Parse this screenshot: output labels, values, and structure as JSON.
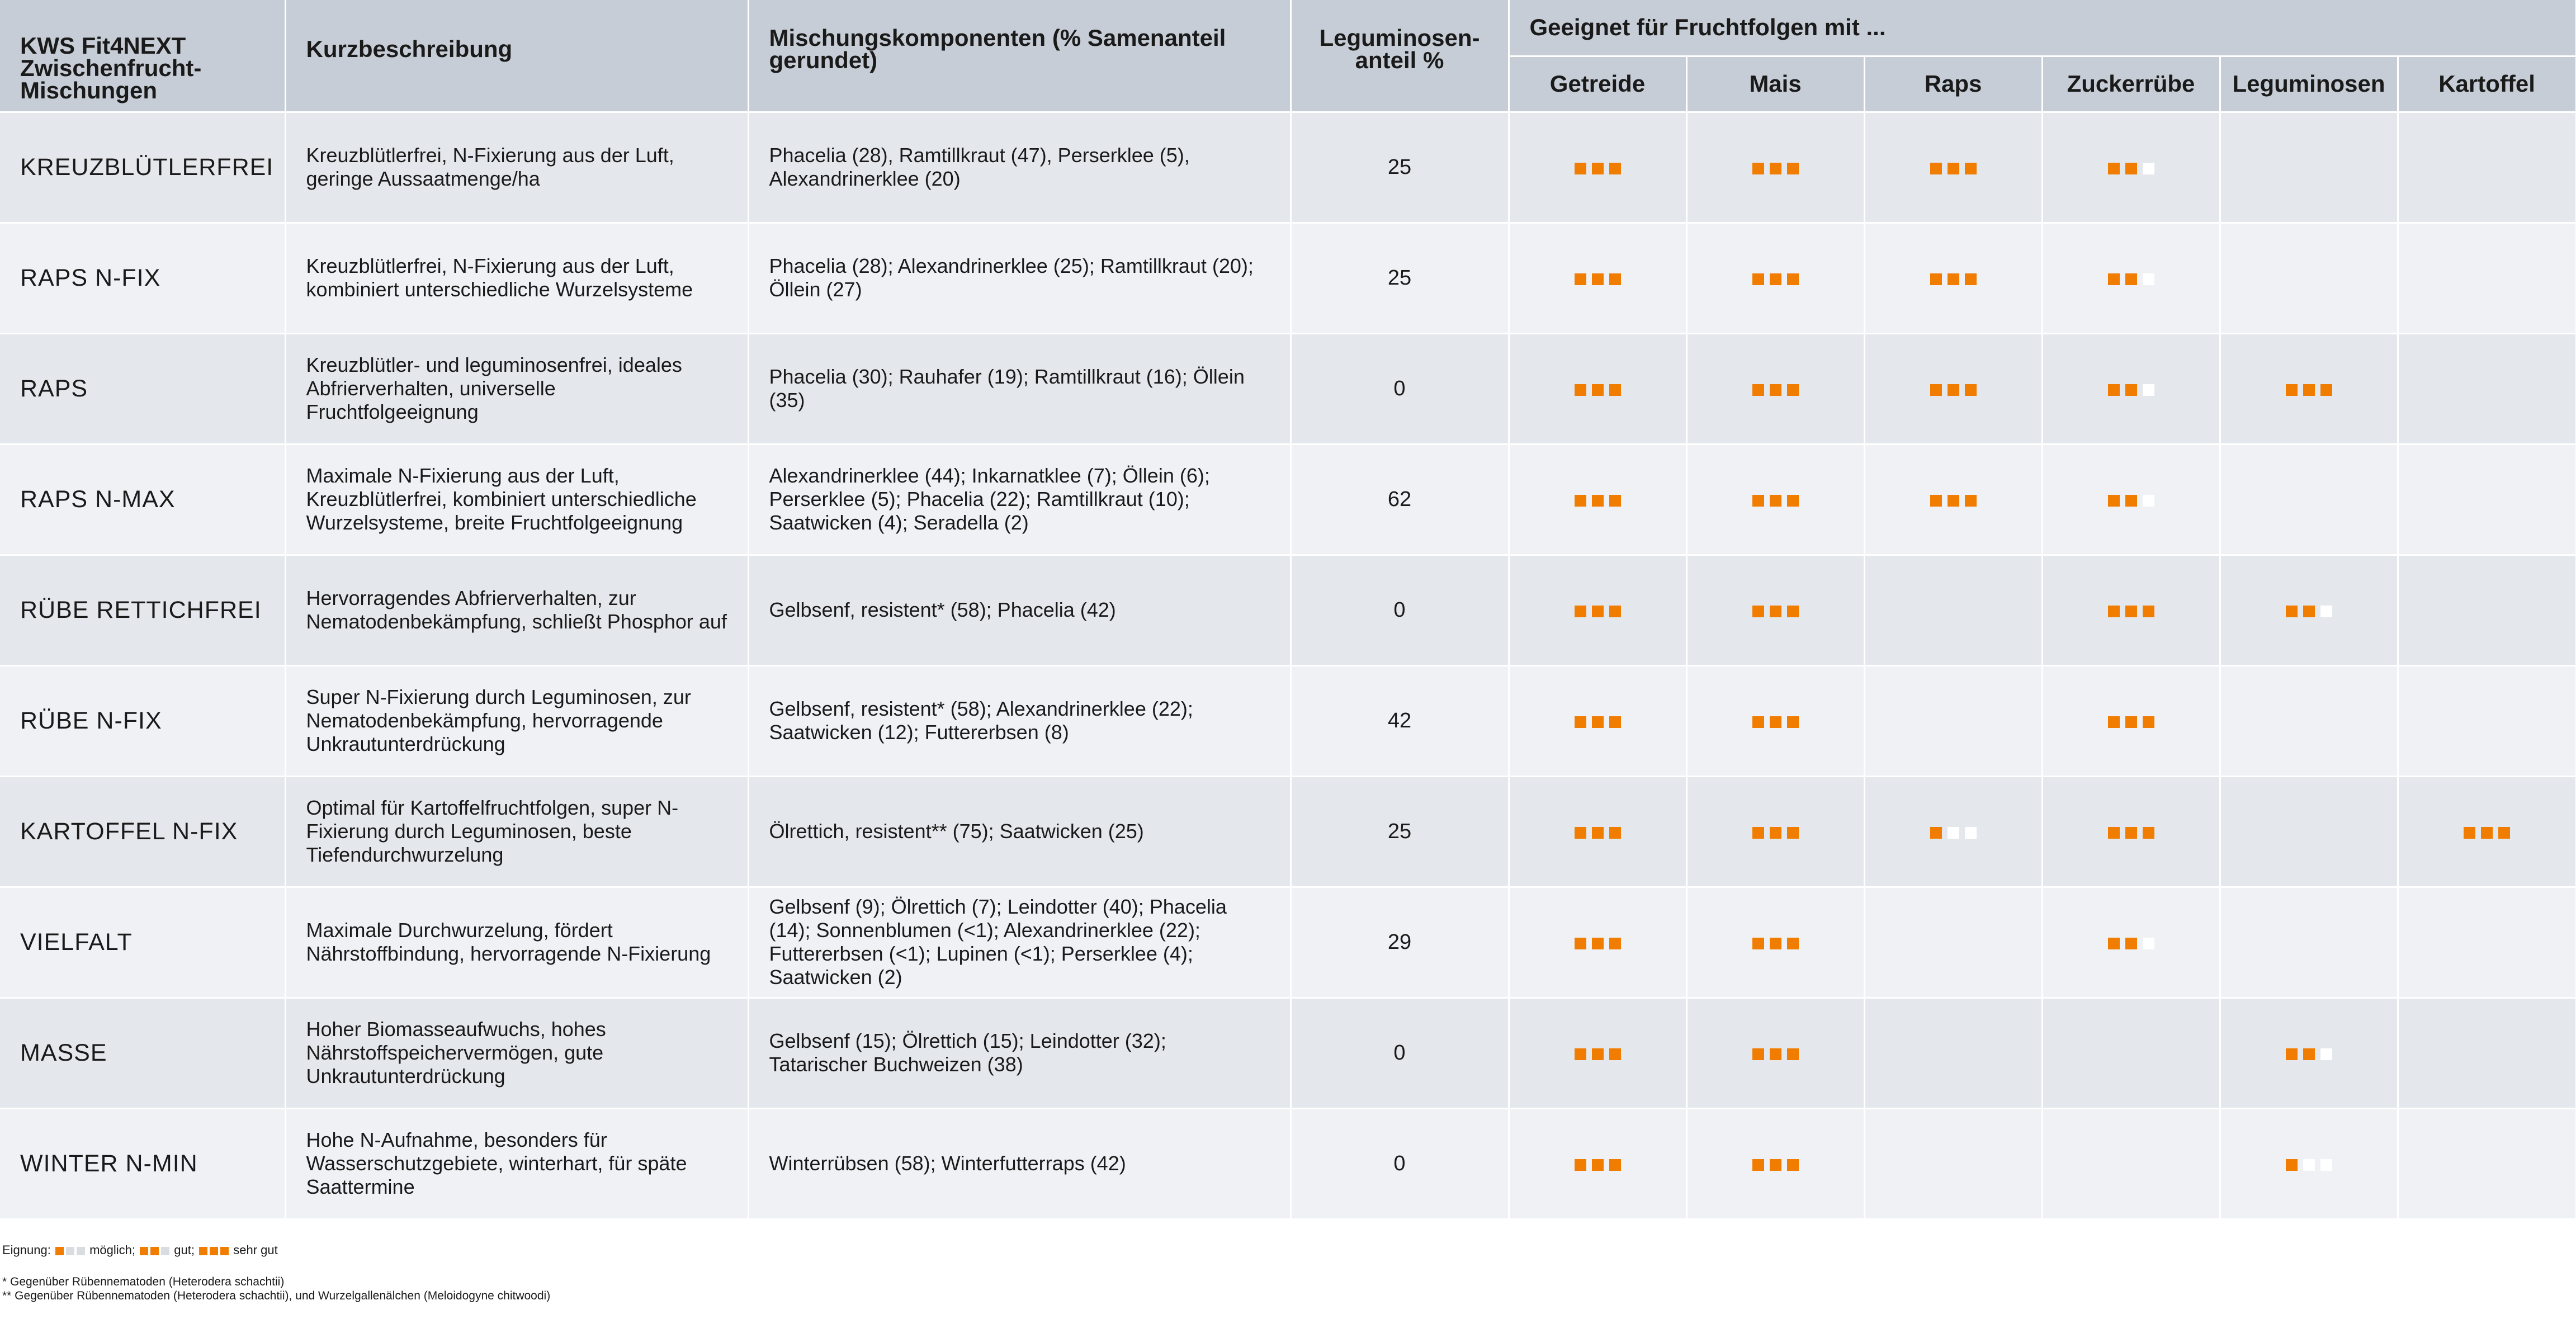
{
  "header": {
    "col_mix": "KWS Fit4NEXT Zwischenfrucht-Mischungen",
    "col_desc": "Kurzbeschreibung",
    "col_components": "Mischungskomponenten (% Samenanteil gerundet)",
    "col_legume": "Leguminosen-anteil %",
    "group": "Geeignet für Fruchtfolgen mit ...",
    "crops": [
      "Getreide",
      "Mais",
      "Raps",
      "Zuckerrübe",
      "Leguminosen",
      "Kartoffel"
    ]
  },
  "rows": [
    {
      "name": "KREUZBLÜTLERFREI",
      "desc": "Kreuzblütlerfrei, N-Fixierung aus der Luft, geringe Aussaatmenge/ha",
      "components": "Phacelia (28), Ramtillkraut (47), Perserklee (5), Alexandrinerklee (20)",
      "legume": "25",
      "ratings": [
        3,
        3,
        3,
        2,
        0,
        0
      ]
    },
    {
      "name": "RAPS N-FIX",
      "desc": "Kreuzblütlerfrei, N-Fixierung aus der Luft, kombiniert unterschiedliche Wurzelsysteme",
      "components": "Phacelia (28); Alexandrinerklee (25); Ramtillkraut (20); Öllein (27)",
      "legume": "25",
      "ratings": [
        3,
        3,
        3,
        2,
        0,
        0
      ]
    },
    {
      "name": "RAPS",
      "desc": "Kreuzblütler- und leguminosenfrei, ideales Abfrierverhalten, universelle Fruchtfolgeeignung",
      "components": "Phacelia (30); Rauhafer (19); Ramtillkraut (16); Öllein (35)",
      "legume": "0",
      "ratings": [
        3,
        3,
        3,
        2,
        3,
        0
      ]
    },
    {
      "name": "RAPS N-MAX",
      "desc": "Maximale N-Fixierung aus der Luft, Kreuzblütlerfrei, kombiniert unterschiedliche Wurzelsysteme, breite Fruchtfolgeeignung",
      "components": "Alexandrinerklee (44); Inkarnatklee (7); Öllein (6); Perserklee (5); Phacelia (22); Ramtillkraut (10); Saatwicken (4); Seradella (2)",
      "legume": "62",
      "ratings": [
        3,
        3,
        3,
        2,
        0,
        0
      ]
    },
    {
      "name": "RÜBE RETTICHFREI",
      "desc": "Hervorragendes Abfrierverhalten, zur Nematodenbekämpfung, schließt Phosphor auf",
      "components": "Gelbsenf, resistent* (58); Phacelia (42)",
      "legume": "0",
      "ratings": [
        3,
        3,
        0,
        3,
        2,
        0
      ]
    },
    {
      "name": "RÜBE N-FIX",
      "desc": "Super N-Fixierung durch Leguminosen, zur Nematodenbekämpfung, hervorragende Unkrautunterdrückung",
      "components": "Gelbsenf, resistent* (58); Alexandrinerklee (22); Saatwicken (12); Futtererbsen (8)",
      "legume": "42",
      "ratings": [
        3,
        3,
        0,
        3,
        0,
        0
      ]
    },
    {
      "name": "KARTOFFEL N-FIX",
      "desc": "Optimal für Kartoffelfruchtfolgen, super N-Fixierung durch Leguminosen, beste Tiefendurchwurzelung",
      "components": "Ölrettich, resistent** (75); Saatwicken (25)",
      "legume": "25",
      "ratings": [
        3,
        3,
        1,
        3,
        0,
        3
      ]
    },
    {
      "name": "VIELFALT",
      "desc": "Maximale Durchwurzelung, fördert Nährstoffbindung, hervorragende N-Fixierung",
      "components": "Gelbsenf (9); Ölrettich (7); Leindotter (40); Phacelia (14); Sonnenblumen (<1); Alexandrinerklee (22); Futtererbsen (<1); Lupinen (<1); Perserklee (4); Saatwicken (2)",
      "legume": "29",
      "ratings": [
        3,
        3,
        0,
        2,
        0,
        0
      ]
    },
    {
      "name": "MASSE",
      "desc": "Hoher Biomasseaufwuchs, hohes Nährstoffspeichervermögen, gute Unkrautunterdrückung",
      "components": "Gelbsenf (15); Ölrettich (15); Leindotter (32); Tatarischer Buchweizen (38)",
      "legume": "0",
      "ratings": [
        3,
        3,
        0,
        0,
        2,
        0
      ]
    },
    {
      "name": "WINTER N-MIN",
      "desc": "Hohe N-Aufnahme, besonders für Wasserschutzgebiete, winterhart, für späte Saattermine",
      "components": "Winterrübsen (58); Winterfutterraps (42)",
      "legume": "0",
      "ratings": [
        3,
        3,
        0,
        0,
        1,
        0
      ]
    }
  ],
  "legend": {
    "prefix": "Eignung:",
    "possible": "möglich;",
    "good": "gut;",
    "very_good": "sehr gut"
  },
  "footnotes": {
    "one": "* Gegenüber Rübennematoden (Heterodera schachtii)",
    "two": "** Gegenüber Rübennematoden (Heterodera schachtii), und Wurzelgallenälchen (Meloidogyne chitwoodi)"
  },
  "colors": {
    "rating_on": "#f07c00",
    "rating_off": "#ffffff",
    "header_bg": "#c7cdd6",
    "row_odd": "#e4e7eb",
    "row_even": "#eff1f4"
  }
}
